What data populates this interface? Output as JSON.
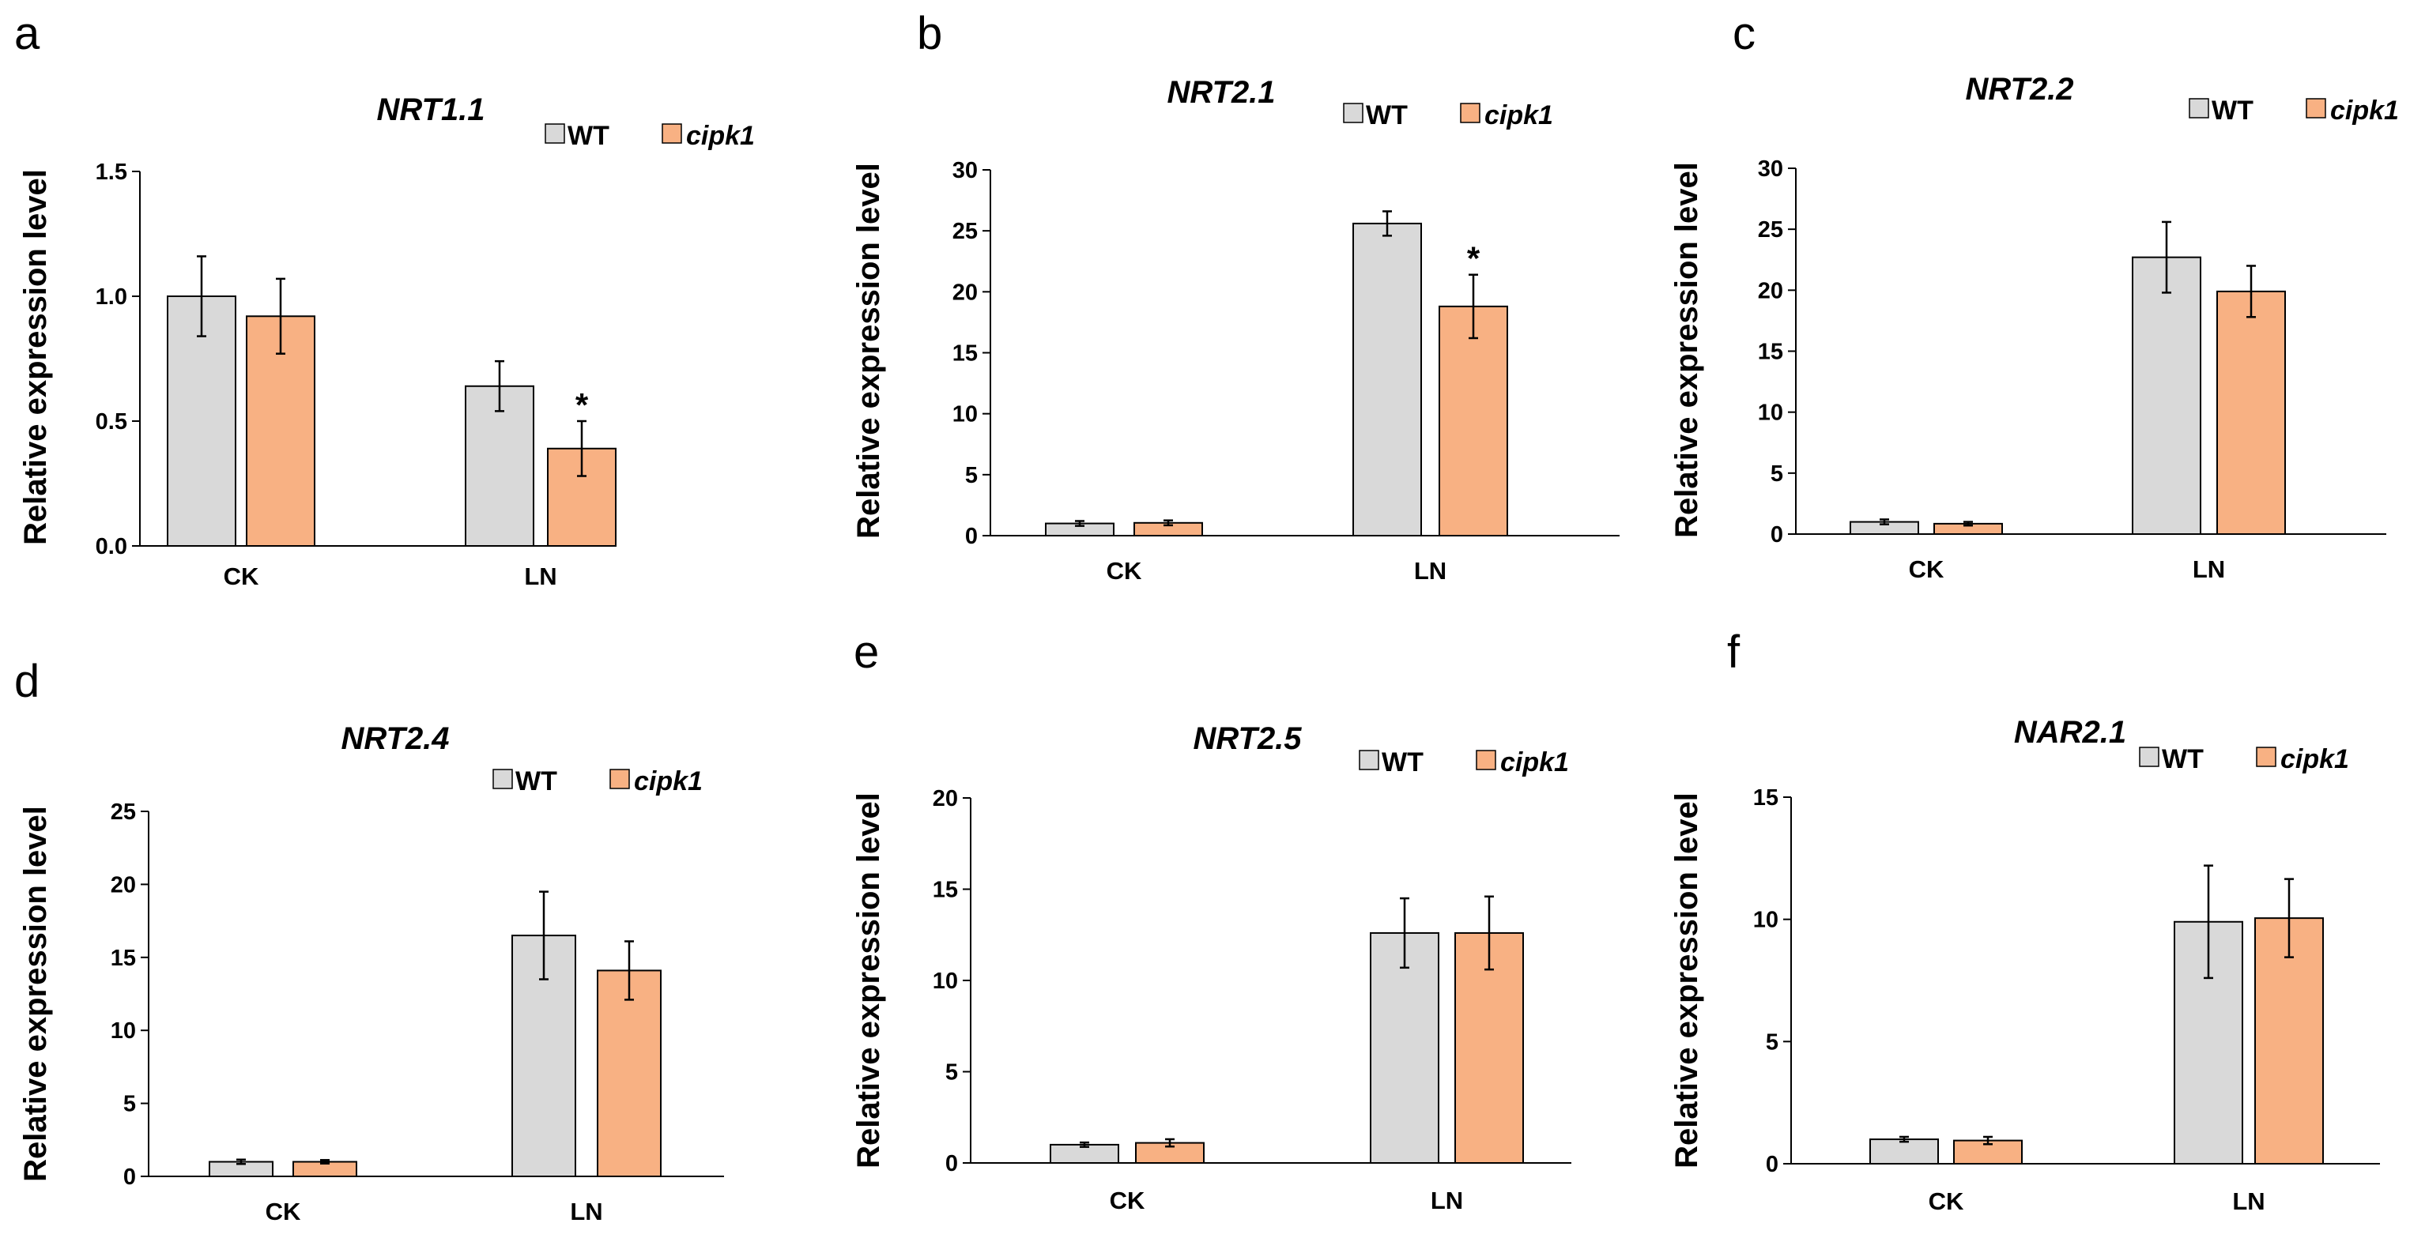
{
  "figure": {
    "series_colors": {
      "WT": "#d9d9d9",
      "cipk1": "#f8b183"
    },
    "edge_color": "#000000"
  },
  "chart_data": [
    {
      "panel": "a",
      "type": "bar",
      "title": "NRT1.1",
      "xlabel": "",
      "ylabel": "Relative expression level",
      "categories": [
        "CK",
        "LN"
      ],
      "ylim": [
        0,
        1.5
      ],
      "yticks": [
        "0.0",
        "0.5",
        "1.0",
        "1.5"
      ],
      "yticks_values": [
        0,
        0.5,
        1.0,
        1.5
      ],
      "legend": {
        "position": "top-right",
        "entries": [
          "WT",
          "cipk1"
        ]
      },
      "series": [
        {
          "name": "WT",
          "values": [
            1.0,
            0.64
          ],
          "errors": [
            0.16,
            0.1
          ],
          "significance": [
            "",
            ""
          ]
        },
        {
          "name": "cipk1",
          "values": [
            0.92,
            0.39
          ],
          "errors": [
            0.15,
            0.11
          ],
          "significance": [
            "",
            "*"
          ]
        }
      ]
    },
    {
      "panel": "b",
      "type": "bar",
      "title": "NRT2.1",
      "xlabel": "",
      "ylabel": "Relative expression level",
      "categories": [
        "CK",
        "LN"
      ],
      "ylim": [
        0,
        30
      ],
      "yticks": [
        "0",
        "5",
        "10",
        "15",
        "20",
        "25",
        "30"
      ],
      "yticks_values": [
        0,
        5,
        10,
        15,
        20,
        25,
        30
      ],
      "legend": {
        "position": "top-right",
        "entries": [
          "WT",
          "cipk1"
        ]
      },
      "series": [
        {
          "name": "WT",
          "values": [
            1.0,
            25.6
          ],
          "errors": [
            0.2,
            1.0
          ],
          "significance": [
            "",
            ""
          ]
        },
        {
          "name": "cipk1",
          "values": [
            1.05,
            18.8
          ],
          "errors": [
            0.2,
            2.6
          ],
          "significance": [
            "",
            "*"
          ]
        }
      ]
    },
    {
      "panel": "c",
      "type": "bar",
      "title": "NRT2.2",
      "xlabel": "",
      "ylabel": "Relative expression level",
      "categories": [
        "CK",
        "LN"
      ],
      "ylim": [
        0,
        30
      ],
      "yticks": [
        "0",
        "5",
        "10",
        "15",
        "20",
        "25",
        "30"
      ],
      "yticks_values": [
        0,
        5,
        10,
        15,
        20,
        25,
        30
      ],
      "legend": {
        "position": "top-right",
        "entries": [
          "WT",
          "cipk1"
        ]
      },
      "series": [
        {
          "name": "WT",
          "values": [
            1.0,
            22.7
          ],
          "errors": [
            0.2,
            2.9
          ],
          "significance": [
            "",
            ""
          ]
        },
        {
          "name": "cipk1",
          "values": [
            0.85,
            19.9
          ],
          "errors": [
            0.15,
            2.1
          ],
          "significance": [
            "",
            ""
          ]
        }
      ]
    },
    {
      "panel": "d",
      "type": "bar",
      "title": "NRT2.4",
      "xlabel": "",
      "ylabel": "Relative expression level",
      "categories": [
        "CK",
        "LN"
      ],
      "ylim": [
        0,
        25
      ],
      "yticks": [
        "0",
        "5",
        "10",
        "15",
        "20",
        "25"
      ],
      "yticks_values": [
        0,
        5,
        10,
        15,
        20,
        25
      ],
      "legend": {
        "position": "top-right",
        "entries": [
          "WT",
          "cipk1"
        ]
      },
      "series": [
        {
          "name": "WT",
          "values": [
            1.0,
            16.5
          ],
          "errors": [
            0.15,
            3.0
          ],
          "significance": [
            "",
            ""
          ]
        },
        {
          "name": "cipk1",
          "values": [
            1.0,
            14.1
          ],
          "errors": [
            0.12,
            2.0
          ],
          "significance": [
            "",
            ""
          ]
        }
      ]
    },
    {
      "panel": "e",
      "type": "bar",
      "title": "NRT2.5",
      "xlabel": "",
      "ylabel": "Relative expression level",
      "categories": [
        "CK",
        "LN"
      ],
      "ylim": [
        0,
        20
      ],
      "yticks": [
        "0",
        "5",
        "10",
        "15",
        "20"
      ],
      "yticks_values": [
        0,
        5,
        10,
        15,
        20
      ],
      "legend": {
        "position": "top-right",
        "entries": [
          "WT",
          "cipk1"
        ]
      },
      "series": [
        {
          "name": "WT",
          "values": [
            1.0,
            12.6
          ],
          "errors": [
            0.12,
            1.9
          ],
          "significance": [
            "",
            ""
          ]
        },
        {
          "name": "cipk1",
          "values": [
            1.1,
            12.6
          ],
          "errors": [
            0.2,
            2.0
          ],
          "significance": [
            "",
            ""
          ]
        }
      ]
    },
    {
      "panel": "f",
      "type": "bar",
      "title": "NAR2.1",
      "xlabel": "",
      "ylabel": "Relative expression level",
      "categories": [
        "CK",
        "LN"
      ],
      "ylim": [
        0,
        15
      ],
      "yticks": [
        "0",
        "5",
        "10",
        "15"
      ],
      "yticks_values": [
        0,
        5,
        10,
        15
      ],
      "legend": {
        "position": "top-right",
        "entries": [
          "WT",
          "cipk1"
        ]
      },
      "series": [
        {
          "name": "WT",
          "values": [
            1.0,
            9.9
          ],
          "errors": [
            0.1,
            2.3
          ],
          "significance": [
            "",
            ""
          ]
        },
        {
          "name": "cipk1",
          "values": [
            0.95,
            10.05
          ],
          "errors": [
            0.15,
            1.6
          ],
          "significance": [
            "",
            ""
          ]
        }
      ]
    }
  ]
}
